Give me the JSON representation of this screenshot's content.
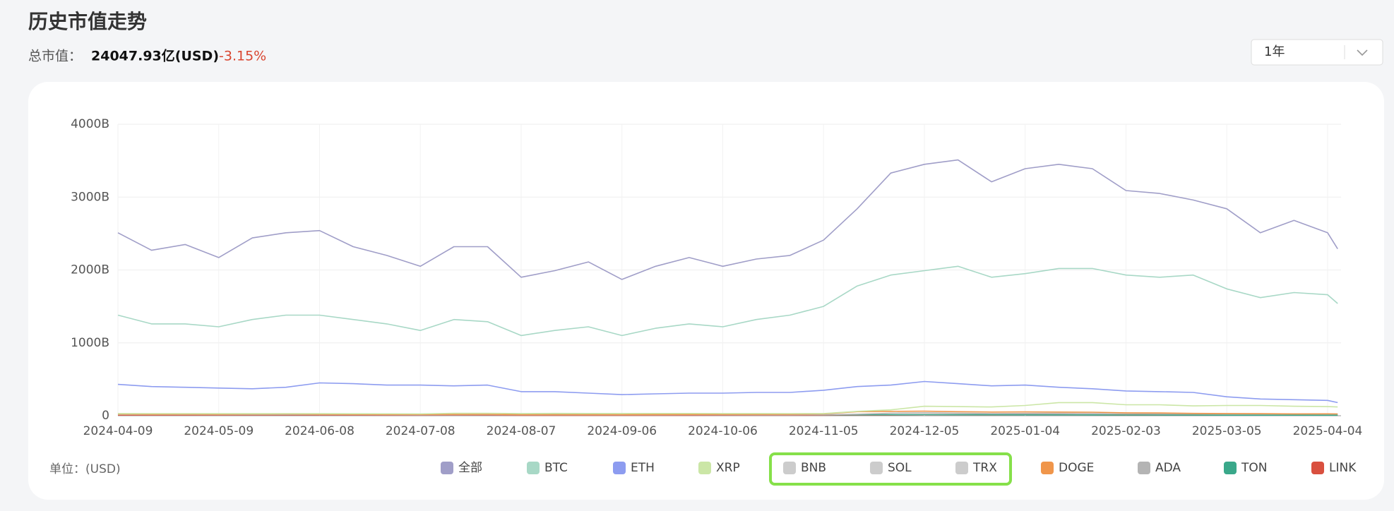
{
  "header": {
    "title": "历史市值走势",
    "total_label": "总市值：",
    "total_value": "24047.93亿(USD)",
    "change": "-3.15%"
  },
  "range_select": "1年",
  "chart_data": {
    "type": "line",
    "unit": "单位：(USD)",
    "x": [
      "2024-04-09",
      "2024-04-19",
      "2024-04-29",
      "2024-05-09",
      "2024-05-19",
      "2024-05-29",
      "2024-06-08",
      "2024-06-18",
      "2024-06-28",
      "2024-07-08",
      "2024-07-18",
      "2024-07-28",
      "2024-08-07",
      "2024-08-17",
      "2024-08-27",
      "2024-09-06",
      "2024-09-16",
      "2024-09-26",
      "2024-10-06",
      "2024-10-16",
      "2024-10-26",
      "2024-11-05",
      "2024-11-15",
      "2024-11-25",
      "2024-12-05",
      "2024-12-15",
      "2024-12-25",
      "2025-01-04",
      "2025-01-14",
      "2025-01-24",
      "2025-02-03",
      "2025-02-13",
      "2025-02-23",
      "2025-03-05",
      "2025-03-15",
      "2025-03-25",
      "2025-04-04",
      "2025-04-07"
    ],
    "xlim": [
      "2024-04-09",
      "2025-04-08"
    ],
    "xticks": [
      "2024-04-09",
      "2024-05-09",
      "2024-06-08",
      "2024-07-08",
      "2024-08-07",
      "2024-09-06",
      "2024-10-06",
      "2024-11-05",
      "2024-12-05",
      "2025-01-04",
      "2025-02-03",
      "2025-03-05",
      "2025-04-04"
    ],
    "ylim": [
      0,
      4000
    ],
    "yticks": [
      0,
      {
        "value": 1000,
        "label": "1000B"
      },
      {
        "value": 2000,
        "label": "2000B"
      },
      {
        "value": 3000,
        "label": "3000B"
      },
      {
        "value": 4000,
        "label": "4000B"
      }
    ],
    "grid": true,
    "series": [
      {
        "name": "全部",
        "color": "#a09ec8",
        "visible": true,
        "values": [
          2510,
          2270,
          2350,
          2170,
          2440,
          2510,
          2540,
          2320,
          2200,
          2050,
          2320,
          2320,
          1900,
          1990,
          2110,
          1870,
          2050,
          2170,
          2050,
          2150,
          2200,
          2410,
          2840,
          3330,
          3450,
          3510,
          3210,
          3390,
          3450,
          3390,
          3090,
          3050,
          2960,
          2840,
          2510,
          2680,
          2510,
          2290
        ]
      },
      {
        "name": "BTC",
        "color": "#a8d8c6",
        "visible": true,
        "values": [
          1380,
          1260,
          1260,
          1220,
          1320,
          1380,
          1380,
          1320,
          1260,
          1170,
          1320,
          1290,
          1100,
          1170,
          1220,
          1100,
          1200,
          1260,
          1220,
          1320,
          1380,
          1500,
          1780,
          1930,
          1990,
          2050,
          1900,
          1950,
          2020,
          2020,
          1930,
          1900,
          1930,
          1740,
          1620,
          1690,
          1660,
          1540
        ]
      },
      {
        "name": "ETH",
        "color": "#8d9cf0",
        "visible": true,
        "values": [
          430,
          400,
          390,
          380,
          370,
          390,
          450,
          440,
          420,
          420,
          410,
          420,
          330,
          330,
          310,
          290,
          300,
          310,
          310,
          320,
          320,
          350,
          400,
          420,
          470,
          440,
          410,
          420,
          390,
          370,
          340,
          330,
          320,
          260,
          230,
          220,
          210,
          180
        ]
      },
      {
        "name": "XRP",
        "color": "#cbe6a6",
        "visible": true,
        "values": [
          30,
          29,
          29,
          28,
          28,
          29,
          28,
          27,
          26,
          25,
          33,
          34,
          30,
          32,
          31,
          31,
          31,
          31,
          30,
          30,
          29,
          30,
          60,
          80,
          130,
          125,
          120,
          140,
          180,
          180,
          150,
          150,
          135,
          140,
          140,
          130,
          125,
          120
        ]
      },
      {
        "name": "BNB",
        "color": "#cccccc",
        "visible": false
      },
      {
        "name": "SOL",
        "color": "#cccccc",
        "visible": false
      },
      {
        "name": "TRX",
        "color": "#cccccc",
        "visible": false
      },
      {
        "name": "DOGE",
        "color": "#f0964b",
        "visible": true,
        "values": [
          22,
          20,
          21,
          19,
          22,
          23,
          19,
          18,
          17,
          17,
          18,
          19,
          15,
          15,
          15,
          15,
          16,
          17,
          18,
          18,
          19,
          25,
          55,
          60,
          62,
          55,
          50,
          52,
          50,
          48,
          40,
          38,
          32,
          30,
          28,
          25,
          26,
          24
        ]
      },
      {
        "name": "ADA",
        "color": "#b4b4b4",
        "visible": true,
        "values": [
          16,
          15,
          15,
          14,
          15,
          16,
          15,
          14,
          13,
          12,
          13,
          14,
          12,
          12,
          12,
          12,
          12,
          13,
          13,
          12,
          12,
          13,
          20,
          35,
          40,
          35,
          30,
          32,
          33,
          32,
          28,
          26,
          26,
          25,
          25,
          24,
          24,
          23
        ]
      },
      {
        "name": "TON",
        "color": "#3aa88a",
        "visible": true,
        "values": [
          18,
          20,
          22,
          20,
          22,
          23,
          25,
          22,
          20,
          18,
          17,
          17,
          14,
          14,
          15,
          13,
          13,
          14,
          14,
          13,
          13,
          12,
          13,
          14,
          15,
          14,
          14,
          13,
          13,
          12,
          10,
          10,
          9,
          8,
          8,
          8,
          7,
          7
        ]
      },
      {
        "name": "LINK",
        "color": "#d9503f",
        "visible": true,
        "values": [
          8,
          8,
          8,
          8,
          9,
          10,
          9,
          8,
          7,
          7,
          8,
          8,
          6,
          6,
          6,
          6,
          6,
          6,
          7,
          7,
          7,
          7,
          9,
          11,
          15,
          14,
          13,
          14,
          14,
          13,
          11,
          10,
          9,
          8,
          8,
          8,
          8,
          7
        ]
      }
    ]
  }
}
